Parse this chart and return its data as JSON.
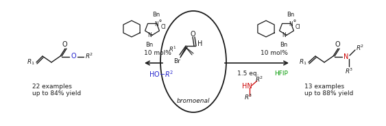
{
  "figsize": [
    5.63,
    1.84
  ],
  "dpi": 100,
  "bg_color": "#ffffff",
  "colors": {
    "black": "#1a1a1a",
    "blue": "#2222cc",
    "green": "#009900",
    "red": "#cc0000",
    "oxygen_blue": "#2222cc",
    "nitrogen_red": "#cc0000"
  },
  "nhc_left_label": "10 mol%",
  "nhc_right_label": "10 mol%",
  "hfip_label": "HFIP",
  "left_product_text": "22 examples\nup to 84% yield",
  "right_product_text": "13 examples\nup to 88% yield",
  "center_label": "bromoenal"
}
